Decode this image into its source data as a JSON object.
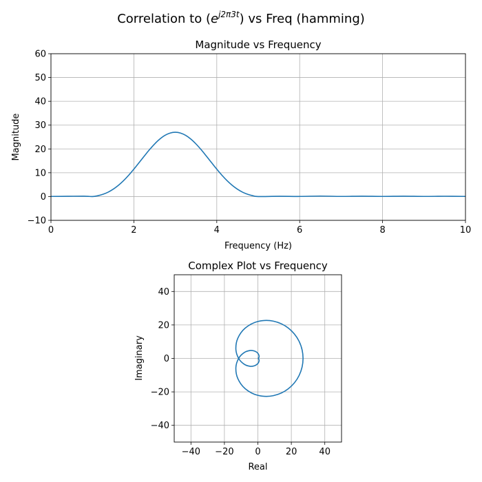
{
  "figure": {
    "suptitle_prefix": "Correlation to (",
    "suptitle_base": "e",
    "suptitle_sup": "j2π3t",
    "suptitle_suffix": ") vs Freq (hamming)"
  },
  "colors": {
    "line": "#1f77b4",
    "grid": "#b0b0b0",
    "axes": "#000000"
  },
  "chart_data": [
    {
      "type": "line",
      "title": "Magnitude vs Frequency",
      "xlabel": "Frequency (Hz)",
      "ylabel": "Magnitude",
      "xlim": [
        0,
        10
      ],
      "ylim": [
        -10,
        60
      ],
      "xticks": [
        0,
        2,
        4,
        6,
        8,
        10
      ],
      "yticks": [
        -10,
        0,
        10,
        20,
        30,
        40,
        50,
        60
      ],
      "grid": true,
      "x": [
        0,
        0.4,
        0.8,
        1.0,
        1.125,
        1.25,
        1.375,
        1.5,
        1.625,
        1.75,
        1.875,
        2.0,
        2.125,
        2.25,
        2.375,
        2.5,
        2.625,
        2.75,
        2.875,
        3.0,
        3.125,
        3.25,
        3.375,
        3.5,
        3.625,
        3.75,
        3.875,
        4.0,
        4.125,
        4.25,
        4.375,
        4.5,
        4.625,
        4.75,
        4.875,
        5.0,
        5.5,
        6.0,
        6.5,
        7.0,
        7.5,
        8.0,
        8.5,
        9.0,
        9.5,
        10.0
      ],
      "y": [
        0.05,
        0.1,
        0.15,
        0.0,
        0.33,
        0.92,
        1.81,
        3.06,
        4.67,
        6.64,
        8.94,
        11.5,
        14.22,
        16.97,
        19.64,
        22.07,
        24.12,
        25.69,
        26.67,
        27.0,
        26.67,
        25.69,
        24.12,
        22.07,
        19.64,
        16.97,
        14.22,
        11.5,
        8.94,
        6.64,
        4.67,
        3.06,
        1.81,
        0.92,
        0.33,
        0.0,
        0.1,
        0.05,
        0.2,
        0.05,
        0.15,
        0.05,
        0.15,
        0.05,
        0.12,
        0.05
      ]
    },
    {
      "type": "line",
      "title": "Complex Plot vs Frequency",
      "xlabel": "Real",
      "ylabel": "Imaginary",
      "xlim": [
        -50,
        50
      ],
      "ylim": [
        -50,
        50
      ],
      "xticks": [
        -40,
        -20,
        0,
        20,
        40
      ],
      "yticks": [
        -40,
        -20,
        0,
        20,
        40
      ],
      "grid": true,
      "real": [
        0,
        0.3,
        0.65,
        0.69,
        0,
        -1.79,
        -4.7,
        -8.26,
        -11.5,
        -13.14,
        -12.0,
        -7.52,
        0,
        9.23,
        18.17,
        24.64,
        27.0,
        24.64,
        18.17,
        9.23,
        0,
        -7.52,
        -12.0,
        -13.14,
        -11.5,
        -8.26,
        -4.7,
        -1.79,
        0,
        0.69,
        0.65,
        0.3,
        0
      ],
      "imag": [
        0,
        0.13,
        0.65,
        1.67,
        3.06,
        4.31,
        4.7,
        3.42,
        0,
        -5.44,
        -12.0,
        -18.14,
        -22.07,
        -22.28,
        -18.17,
        -10.21,
        0,
        10.21,
        18.17,
        22.28,
        22.07,
        18.14,
        12.0,
        5.44,
        0,
        -3.42,
        -4.7,
        -4.31,
        -3.06,
        -1.67,
        -0.65,
        -0.13,
        0
      ]
    }
  ]
}
